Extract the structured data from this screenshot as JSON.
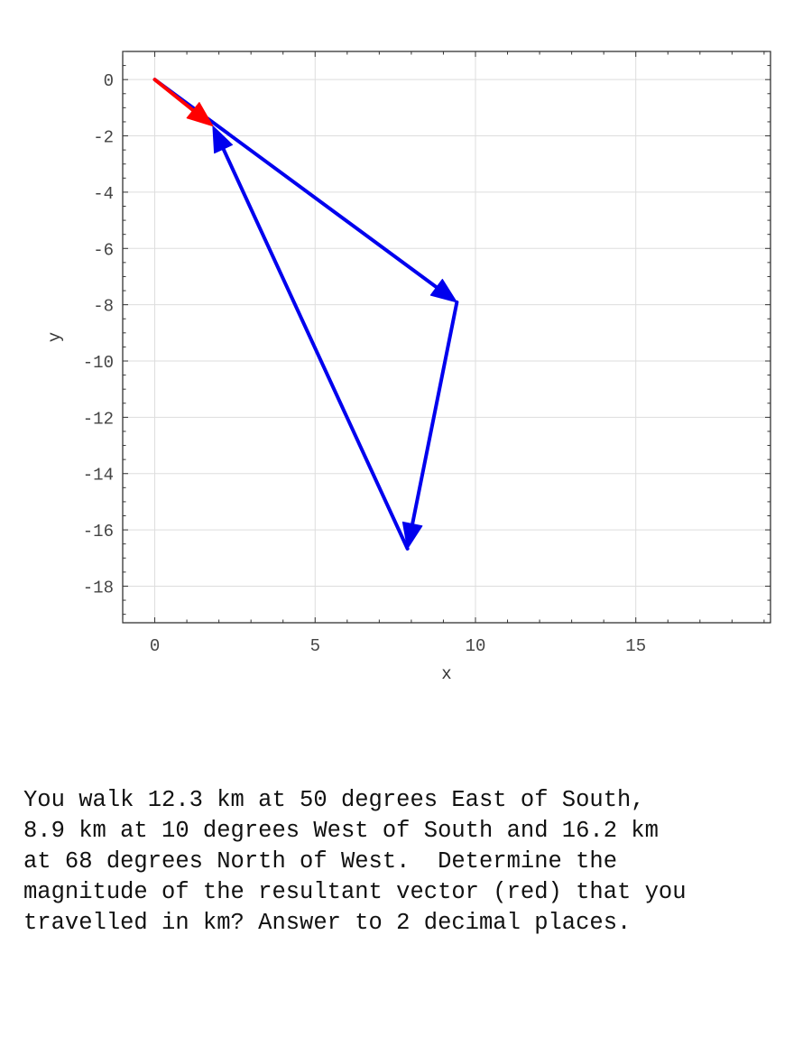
{
  "chart_data": {
    "type": "vector-diagram",
    "xlabel": "x",
    "ylabel": "y",
    "xlim": [
      -1,
      19.2
    ],
    "ylim": [
      -19.3,
      1
    ],
    "xticks": [
      0,
      5,
      10,
      15
    ],
    "yticks": [
      0,
      -2,
      -4,
      -6,
      -8,
      -10,
      -12,
      -14,
      -16,
      -18
    ],
    "grid": true,
    "vectors": [
      {
        "from": [
          0,
          0
        ],
        "to": [
          9.42,
          -7.91
        ],
        "color": "#0000ee"
      },
      {
        "from": [
          9.42,
          -7.91
        ],
        "to": [
          7.88,
          -16.67
        ],
        "color": "#0000ee"
      },
      {
        "from": [
          7.88,
          -16.67
        ],
        "to": [
          1.81,
          -1.65
        ],
        "color": "#0000ee"
      },
      {
        "from": [
          0,
          0
        ],
        "to": [
          1.81,
          -1.65
        ],
        "color": "#ff0000"
      }
    ]
  },
  "question": {
    "lines": [
      "You walk 12.3 km at 50 degrees East of South,",
      "8.9 km at 10 degrees West of South and 16.2 km",
      "at 68 degrees North of West.  Determine the",
      "magnitude of the resultant vector (red) that you",
      "travelled in km? Answer to 2 decimal places."
    ]
  }
}
